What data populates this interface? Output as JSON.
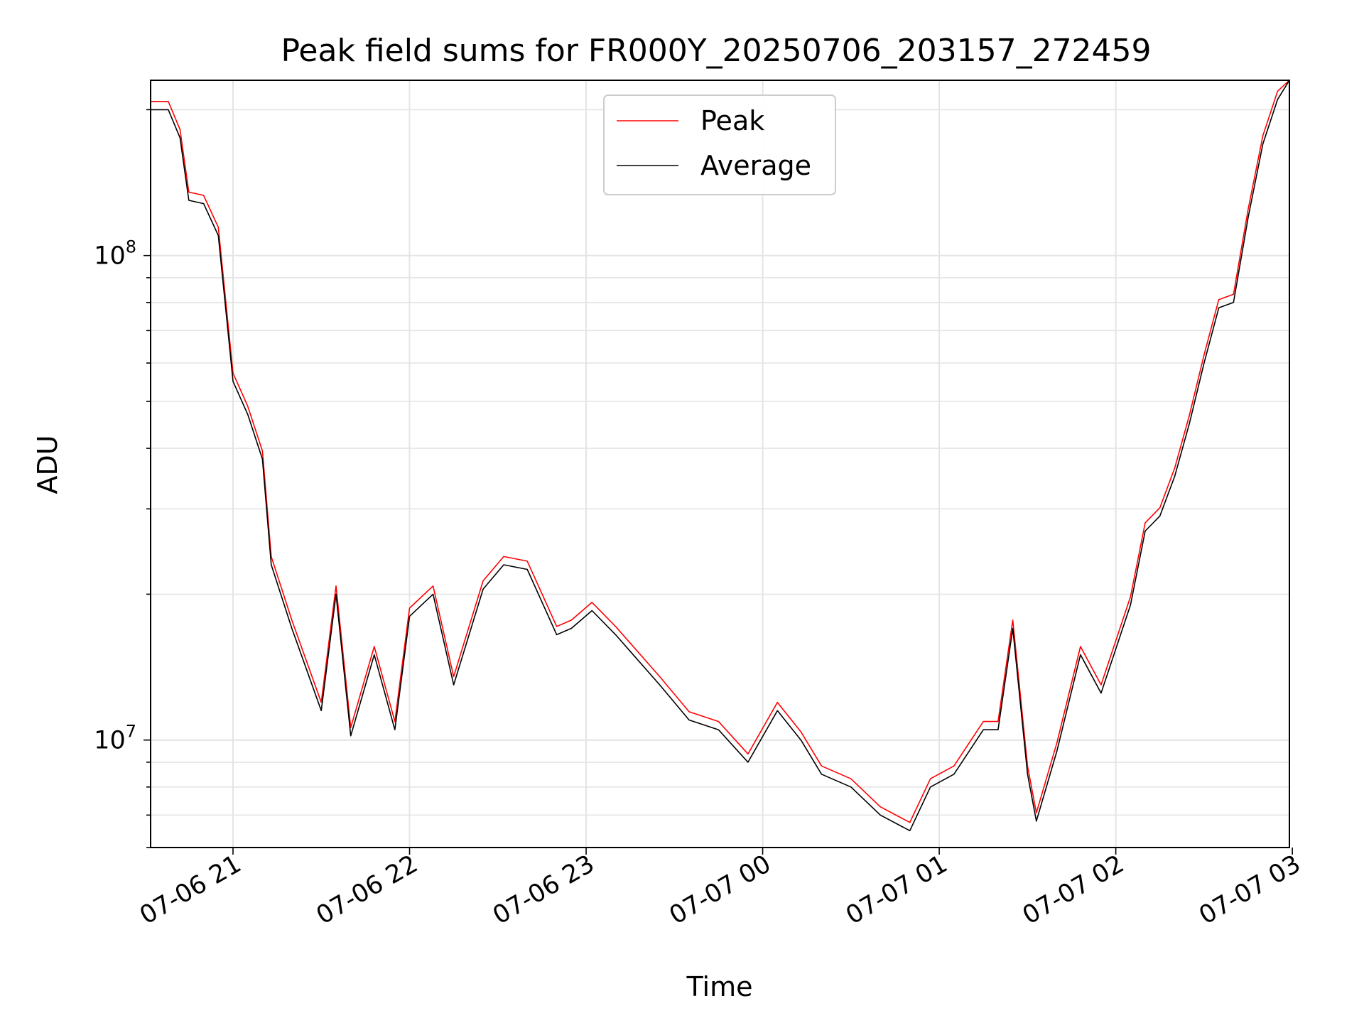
{
  "chart_data": {
    "type": "line",
    "title": "Peak field sums for FR000Y_20250706_203157_272459",
    "xlabel": "Time",
    "ylabel": "ADU",
    "y_scale": "log",
    "ylim": [
      6000000,
      230000000
    ],
    "xlim": [
      "2025-07-06 20:32",
      "2025-07-07 02:59"
    ],
    "grid": true,
    "legend_position": "top-center",
    "x_ticks": [
      "07-06 21",
      "07-06 22",
      "07-06 23",
      "07-07 00",
      "07-07 01",
      "07-07 02",
      "07-07 03"
    ],
    "y_ticks": [
      {
        "value": 10000000,
        "mantissa": "10",
        "exponent": "7"
      },
      {
        "value": 100000000,
        "mantissa": "10",
        "exponent": "8"
      }
    ],
    "series": [
      {
        "name": "Peak",
        "color": "#ff0000"
      },
      {
        "name": "Average",
        "color": "#000000"
      }
    ],
    "x": [
      "2025-07-06 20:32",
      "2025-07-06 20:38",
      "2025-07-06 20:42",
      "2025-07-06 20:45",
      "2025-07-06 20:50",
      "2025-07-06 20:55",
      "2025-07-06 21:00",
      "2025-07-06 21:05",
      "2025-07-06 21:10",
      "2025-07-06 21:13",
      "2025-07-06 21:20",
      "2025-07-06 21:30",
      "2025-07-06 21:35",
      "2025-07-06 21:40",
      "2025-07-06 21:48",
      "2025-07-06 21:55",
      "2025-07-06 22:00",
      "2025-07-06 22:08",
      "2025-07-06 22:15",
      "2025-07-06 22:25",
      "2025-07-06 22:32",
      "2025-07-06 22:40",
      "2025-07-06 22:50",
      "2025-07-06 22:55",
      "2025-07-06 23:02",
      "2025-07-06 23:10",
      "2025-07-06 23:25",
      "2025-07-06 23:35",
      "2025-07-06 23:45",
      "2025-07-06 23:55",
      "2025-07-07 00:05",
      "2025-07-07 00:13",
      "2025-07-07 00:20",
      "2025-07-07 00:30",
      "2025-07-07 00:40",
      "2025-07-07 00:50",
      "2025-07-07 00:57",
      "2025-07-07 01:05",
      "2025-07-07 01:15",
      "2025-07-07 01:20",
      "2025-07-07 01:25",
      "2025-07-07 01:30",
      "2025-07-07 01:33",
      "2025-07-07 01:40",
      "2025-07-07 01:48",
      "2025-07-07 01:55",
      "2025-07-07 02:05",
      "2025-07-07 02:10",
      "2025-07-07 02:15",
      "2025-07-07 02:20",
      "2025-07-07 02:25",
      "2025-07-07 02:30",
      "2025-07-07 02:35",
      "2025-07-07 02:40",
      "2025-07-07 02:45",
      "2025-07-07 02:50",
      "2025-07-07 02:55",
      "2025-07-07 02:59"
    ],
    "values": [
      200000000,
      200000000,
      175000000,
      130000000,
      128000000,
      110000000,
      55000000,
      47000000,
      38000000,
      23000000,
      17000000,
      11500000,
      20000000,
      10200000,
      15000000,
      10500000,
      18000000,
      20000000,
      13000000,
      20500000,
      23000000,
      22500000,
      16500000,
      17000000,
      18500000,
      16500000,
      13000000,
      11000000,
      10500000,
      9000000,
      11500000,
      10000000,
      8500000,
      8000000,
      7000000,
      6500000,
      8000000,
      8500000,
      10500000,
      10500000,
      17000000,
      8500000,
      6800000,
      9500000,
      15000000,
      12500000,
      19000000,
      27000000,
      29000000,
      35000000,
      45000000,
      60000000,
      78000000,
      80000000,
      120000000,
      170000000,
      210000000,
      230000000
    ]
  }
}
